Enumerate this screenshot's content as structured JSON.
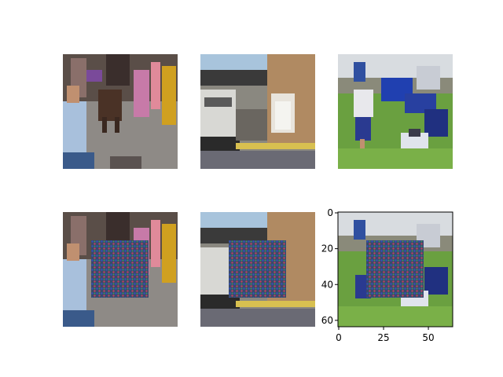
{
  "figure": {
    "panels": [
      {
        "row": "original",
        "scene": "street-bull"
      },
      {
        "row": "original",
        "scene": "street-truck"
      },
      {
        "row": "original",
        "scene": "football"
      },
      {
        "row": "patched",
        "scene": "street-bull",
        "patch": "adversarial-patch"
      },
      {
        "row": "patched",
        "scene": "street-truck",
        "patch": "adversarial-patch"
      },
      {
        "row": "patched",
        "scene": "football",
        "patch": "adversarial-patch"
      }
    ],
    "last_axes": {
      "x_ticks": [
        "0",
        "25",
        "50"
      ],
      "y_ticks": [
        "0",
        "20",
        "40",
        "60"
      ],
      "x_tick_values": [
        0,
        25,
        50
      ],
      "y_tick_values": [
        0,
        20,
        40,
        60
      ],
      "xlim": [
        0,
        64
      ],
      "ylim": [
        64,
        0
      ]
    },
    "colors": {
      "patch_base": "#3a4a6a",
      "patch_dot_a": "#3050c0",
      "patch_dot_b": "#c04060",
      "patch_dot_c": "#40a060"
    }
  }
}
